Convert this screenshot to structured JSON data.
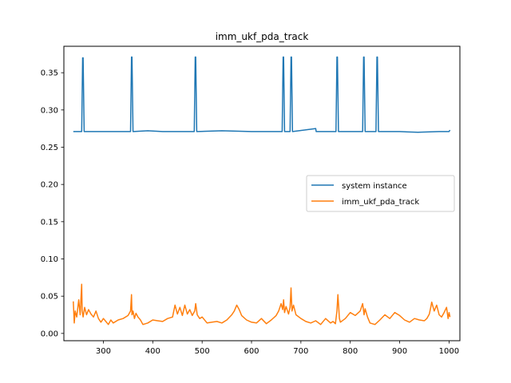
{
  "chart_data": {
    "type": "line",
    "title": "imm_ukf_pda_track",
    "xlabel": "",
    "ylabel": "",
    "xlim": [
      220,
      1022
    ],
    "ylim": [
      -0.0098,
      0.3855
    ],
    "xticks": [
      300,
      400,
      500,
      600,
      700,
      800,
      900,
      1000
    ],
    "yticks": [
      0.0,
      0.05,
      0.1,
      0.15,
      0.2,
      0.25,
      0.3,
      0.35
    ],
    "ytick_labels": [
      "0.00",
      "0.05",
      "0.10",
      "0.15",
      "0.20",
      "0.25",
      "0.30",
      "0.35"
    ],
    "grid": false,
    "legend_position": "center-right",
    "series": [
      {
        "name": "system instance",
        "color": "#1f77b4",
        "x": [
          239,
          256,
          258,
          259,
          261,
          300,
          355,
          357,
          358,
          360,
          390,
          420,
          484,
          486,
          487,
          489,
          540,
          600,
          662,
          664,
          665,
          667,
          678,
          680,
          681,
          683,
          730,
          731,
          732,
          771,
          773,
          774,
          776,
          800,
          825,
          827,
          828,
          830,
          852,
          854,
          855,
          857,
          900,
          937,
          980,
          1000,
          1002
        ],
        "y": [
          0.271,
          0.271,
          0.37,
          0.37,
          0.271,
          0.271,
          0.271,
          0.371,
          0.371,
          0.271,
          0.272,
          0.271,
          0.271,
          0.371,
          0.371,
          0.271,
          0.272,
          0.271,
          0.271,
          0.371,
          0.371,
          0.271,
          0.271,
          0.371,
          0.371,
          0.271,
          0.275,
          0.271,
          0.271,
          0.271,
          0.371,
          0.371,
          0.271,
          0.271,
          0.271,
          0.371,
          0.371,
          0.271,
          0.271,
          0.371,
          0.371,
          0.271,
          0.271,
          0.27,
          0.271,
          0.271,
          0.273
        ]
      },
      {
        "name": "imm_ukf_pda_track",
        "color": "#ff7f0e",
        "x": [
          239,
          241,
          243,
          246,
          250,
          253,
          256,
          257,
          259,
          262,
          266,
          270,
          275,
          280,
          285,
          290,
          295,
          300,
          305,
          310,
          315,
          320,
          330,
          340,
          350,
          355,
          357,
          358,
          360,
          363,
          366,
          370,
          375,
          380,
          390,
          400,
          410,
          420,
          430,
          440,
          445,
          450,
          455,
          460,
          465,
          470,
          475,
          480,
          485,
          487,
          490,
          495,
          500,
          510,
          520,
          530,
          540,
          550,
          560,
          565,
          570,
          575,
          580,
          590,
          600,
          610,
          620,
          630,
          640,
          650,
          655,
          660,
          663,
          665,
          667,
          670,
          675,
          678,
          680,
          682,
          685,
          690,
          700,
          710,
          720,
          730,
          740,
          750,
          760,
          765,
          770,
          773,
          775,
          778,
          780,
          790,
          800,
          810,
          820,
          825,
          828,
          830,
          835,
          840,
          850,
          860,
          870,
          880,
          890,
          900,
          910,
          920,
          930,
          940,
          950,
          955,
          960,
          963,
          965,
          970,
          975,
          980,
          985,
          990,
          995,
          998,
          1000,
          1002
        ],
        "y": [
          0.043,
          0.014,
          0.03,
          0.022,
          0.045,
          0.025,
          0.066,
          0.03,
          0.022,
          0.035,
          0.025,
          0.032,
          0.026,
          0.022,
          0.03,
          0.02,
          0.015,
          0.02,
          0.016,
          0.012,
          0.018,
          0.014,
          0.018,
          0.02,
          0.024,
          0.03,
          0.052,
          0.025,
          0.03,
          0.02,
          0.027,
          0.022,
          0.018,
          0.012,
          0.014,
          0.018,
          0.017,
          0.016,
          0.02,
          0.022,
          0.038,
          0.026,
          0.035,
          0.024,
          0.038,
          0.026,
          0.032,
          0.024,
          0.03,
          0.04,
          0.025,
          0.02,
          0.022,
          0.014,
          0.015,
          0.016,
          0.014,
          0.018,
          0.025,
          0.03,
          0.038,
          0.032,
          0.024,
          0.018,
          0.015,
          0.014,
          0.02,
          0.013,
          0.018,
          0.024,
          0.03,
          0.04,
          0.032,
          0.045,
          0.028,
          0.036,
          0.026,
          0.035,
          0.061,
          0.03,
          0.038,
          0.025,
          0.02,
          0.016,
          0.014,
          0.017,
          0.012,
          0.02,
          0.014,
          0.016,
          0.013,
          0.03,
          0.052,
          0.02,
          0.015,
          0.02,
          0.028,
          0.024,
          0.03,
          0.04,
          0.025,
          0.033,
          0.022,
          0.014,
          0.012,
          0.018,
          0.025,
          0.02,
          0.028,
          0.024,
          0.018,
          0.015,
          0.02,
          0.018,
          0.017,
          0.02,
          0.026,
          0.035,
          0.042,
          0.03,
          0.038,
          0.025,
          0.022,
          0.028,
          0.035,
          0.02,
          0.028,
          0.022
        ]
      }
    ]
  }
}
